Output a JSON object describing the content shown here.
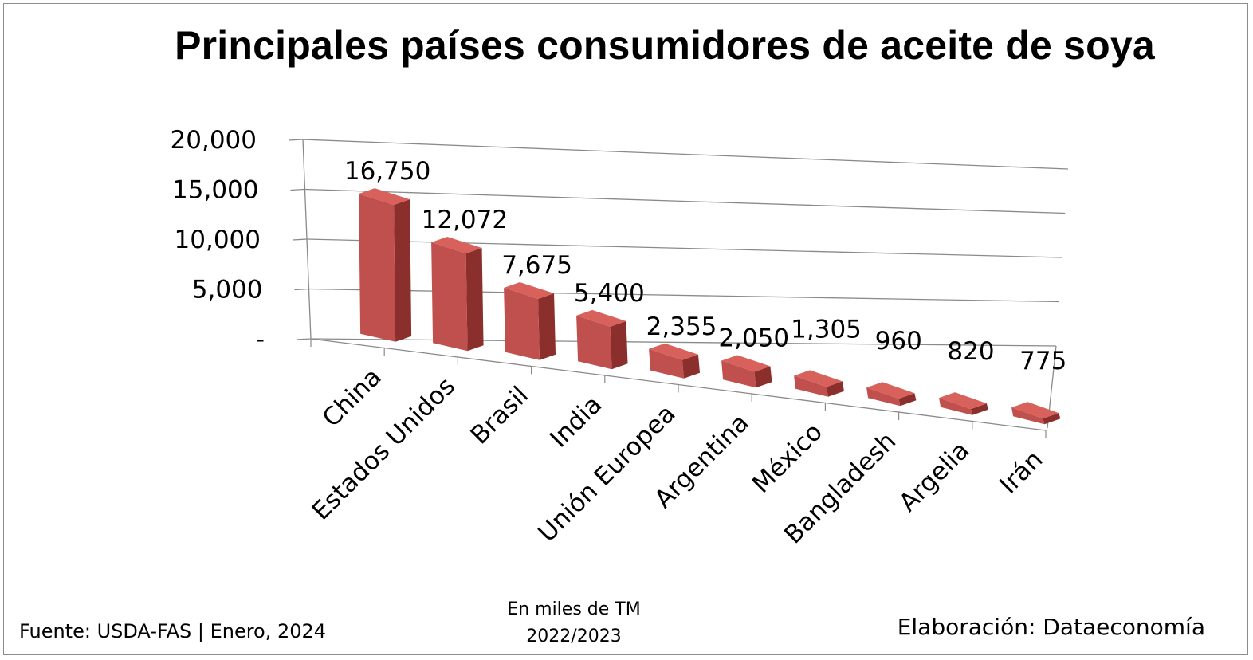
{
  "chart_data": {
    "type": "bar",
    "title": "Principales países consumidores de aceite de soya",
    "categories": [
      "China",
      "Estados Unidos",
      "Brasil",
      "India",
      "Unión Europea",
      "Argentina",
      "México",
      "Bangladesh",
      "Argelia",
      "Irán"
    ],
    "values": [
      16750,
      12072,
      7675,
      5400,
      2355,
      2050,
      1305,
      960,
      820,
      775
    ],
    "data_labels": [
      "16,750",
      "12,072",
      "7,675",
      "5,400",
      "2,355",
      "2,050",
      "1,305",
      "960",
      "820",
      "775"
    ],
    "ylim": [
      0,
      20000
    ],
    "yticks": [
      0,
      5000,
      10000,
      15000,
      20000
    ],
    "ytick_labels": [
      "-",
      "5,000",
      "10,000",
      "15,000",
      "20,000"
    ],
    "grid": true,
    "style": "3d-column",
    "bar_color": "#c0504d"
  },
  "footer": {
    "source": "Fuente:  USDA-FAS | Enero, 2024",
    "units_line1": "En miles de TM",
    "units_line2": "2022/2023",
    "credit": "Elaboración: Dataeconomía"
  }
}
